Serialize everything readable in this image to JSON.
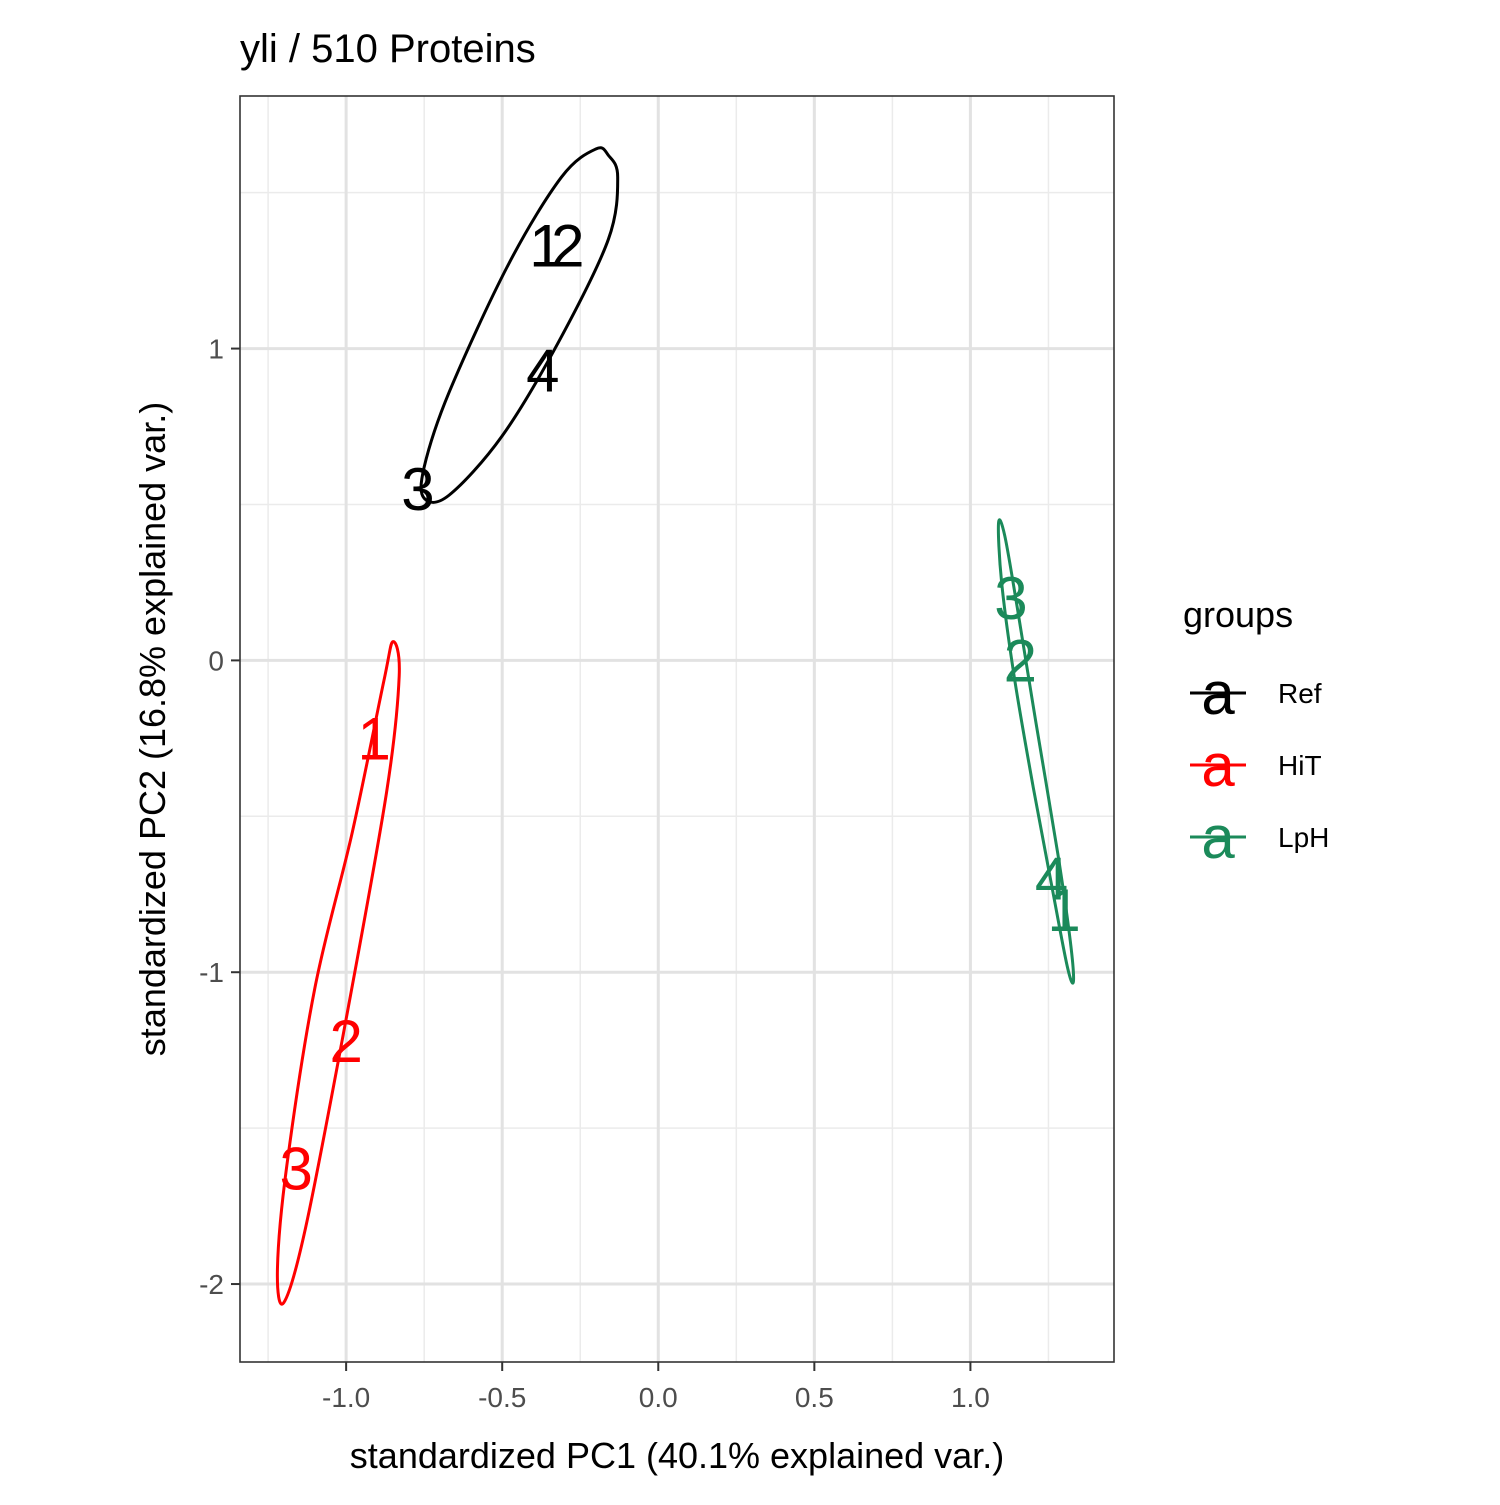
{
  "chart_data": {
    "type": "scatter",
    "title": "yli /  510  Proteins",
    "xlabel": "standardized PC1 (40.1% explained var.)",
    "ylabel": "standardized PC2 (16.8% explained var.)",
    "xlim": [
      -1.34,
      1.46
    ],
    "ylim": [
      -2.25,
      1.81
    ],
    "x_ticks": [
      -1.0,
      -0.5,
      0.0,
      0.5,
      1.0
    ],
    "x_tick_labels": [
      "-1.0",
      "-0.5",
      "0.0",
      "0.5",
      "1.0"
    ],
    "y_ticks": [
      -2,
      -1,
      0,
      1
    ],
    "y_tick_labels": [
      "-2",
      "-1",
      "0",
      "1"
    ],
    "grid": true,
    "legend": {
      "title": "groups",
      "position": "right",
      "glyph": "a",
      "entries": [
        {
          "name": "Ref",
          "color": "#000000"
        },
        {
          "name": "HiT",
          "color": "#ff0000"
        },
        {
          "name": "LpH",
          "color": "#1b8a5a"
        }
      ]
    },
    "series": [
      {
        "name": "Ref",
        "color": "#000000",
        "points": [
          {
            "label": "1",
            "x": -0.36,
            "y": 1.33
          },
          {
            "label": "2",
            "x": -0.29,
            "y": 1.33
          },
          {
            "label": "3",
            "x": -0.77,
            "y": 0.55
          },
          {
            "label": "4",
            "x": -0.37,
            "y": 0.93
          }
        ],
        "ellipse_path": [
          [
            -0.16,
            1.62
          ],
          [
            -0.13,
            1.55
          ],
          [
            -0.16,
            1.35
          ],
          [
            -0.32,
            1.02
          ],
          [
            -0.5,
            0.72
          ],
          [
            -0.67,
            0.53
          ],
          [
            -0.75,
            0.52
          ],
          [
            -0.75,
            0.62
          ],
          [
            -0.67,
            0.86
          ],
          [
            -0.48,
            1.27
          ],
          [
            -0.31,
            1.55
          ],
          [
            -0.2,
            1.64
          ],
          [
            -0.16,
            1.62
          ]
        ]
      },
      {
        "name": "HiT",
        "color": "#ff0000",
        "points": [
          {
            "label": "1",
            "x": -0.91,
            "y": -0.25
          },
          {
            "label": "2",
            "x": -1.0,
            "y": -1.22
          },
          {
            "label": "3",
            "x": -1.16,
            "y": -1.63
          }
        ],
        "ellipse_path": [
          [
            -0.85,
            0.06
          ],
          [
            -0.83,
            -0.05
          ],
          [
            -0.87,
            -0.42
          ],
          [
            -1.0,
            -1.15
          ],
          [
            -1.13,
            -1.82
          ],
          [
            -1.2,
            -2.06
          ],
          [
            -1.22,
            -1.95
          ],
          [
            -1.19,
            -1.62
          ],
          [
            -1.1,
            -1.05
          ],
          [
            -0.98,
            -0.55
          ],
          [
            -0.88,
            -0.07
          ],
          [
            -0.85,
            0.06
          ]
        ]
      },
      {
        "name": "LpH",
        "color": "#1b8a5a",
        "points": [
          {
            "label": "1",
            "x": 1.3,
            "y": -0.8
          },
          {
            "label": "2",
            "x": 1.16,
            "y": 0.0
          },
          {
            "label": "3",
            "x": 1.13,
            "y": 0.2
          },
          {
            "label": "4",
            "x": 1.26,
            "y": -0.7
          }
        ],
        "ellipse_path": [
          [
            1.09,
            0.44
          ],
          [
            1.11,
            0.4
          ],
          [
            1.15,
            0.17
          ],
          [
            1.21,
            -0.2
          ],
          [
            1.28,
            -0.62
          ],
          [
            1.32,
            -0.9
          ],
          [
            1.33,
            -1.03
          ],
          [
            1.31,
            -0.98
          ],
          [
            1.26,
            -0.72
          ],
          [
            1.2,
            -0.4
          ],
          [
            1.14,
            -0.05
          ],
          [
            1.1,
            0.25
          ],
          [
            1.09,
            0.44
          ]
        ]
      }
    ]
  }
}
